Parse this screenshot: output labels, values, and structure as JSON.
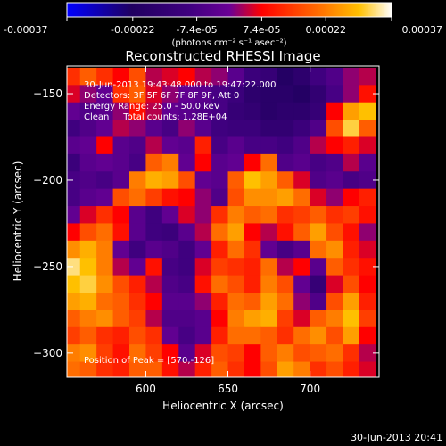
{
  "colorbar": {
    "tick_labels": [
      "-0.00037",
      "-0.00022",
      "-7.4e-05",
      "7.4e-05",
      "0.00022",
      "0.00037"
    ],
    "tick_values": [
      -0.00037,
      -0.00022,
      -7.4e-05,
      7.4e-05,
      0.00022,
      0.00037
    ],
    "range": [
      -0.00037,
      0.00037
    ],
    "unit_label": "(photons cm⁻² s⁻¹ asec⁻²)"
  },
  "overlay": {
    "time_range": "30-Jun-2013 19:43:48.000 to 19:47:22.000",
    "detectors": "Detectors: 3F 5F 6F 7F 8F 9F, Att 0",
    "energy_range": "Energy Range: 25.0 - 50.0 keV",
    "method_counts": "Clean     Total counts: 1.28E+04",
    "peak": "Position of Peak = [570,-126]"
  },
  "footer": {
    "timestamp": "30-Jun-2013 20:41"
  },
  "palette": [
    "#0000ff",
    "#200060",
    "#400080",
    "#6a0096",
    "#ff0000",
    "#ff7000",
    "#ffc000",
    "#ffffff"
  ],
  "chart_data": {
    "type": "heatmap",
    "title": "Reconstructed RHESSI Image",
    "xlabel": "Heliocentric X (arcsec)",
    "ylabel": "Heliocentric Y (arcsec)",
    "xlim": [
      552,
      742
    ],
    "ylim": [
      -314,
      -134
    ],
    "x_ticks": [
      600,
      650,
      700
    ],
    "y_ticks": [
      -300,
      -250,
      -200,
      -150
    ],
    "value_range": [
      -0.00037,
      0.00037
    ],
    "peak_position": [
      570,
      -126
    ],
    "z_columns_x": [
      555,
      565,
      575,
      585,
      595,
      605,
      615,
      625,
      635,
      645,
      655,
      665,
      675,
      685,
      695,
      705,
      715,
      725,
      735
    ],
    "z_rows_y": [
      -140,
      -150,
      -160,
      -170,
      -180,
      -190,
      -200,
      -210,
      -220,
      -230,
      -240,
      -250,
      -260,
      -270,
      -280,
      -290,
      -300,
      -310
    ],
    "z": [
      [
        0.35,
        0.5,
        0.35,
        0.2,
        0.45,
        0.1,
        0.15,
        0.2,
        0.1,
        0.05,
        -0.1,
        -0.3,
        -0.35,
        -0.55,
        -0.45,
        -0.25,
        -0.15,
        0.05,
        0.1
      ],
      [
        0.15,
        0.05,
        -0.05,
        0.35,
        0.5,
        0.15,
        0.05,
        -0.05,
        -0.1,
        -0.2,
        -0.3,
        -0.45,
        -0.5,
        -0.5,
        -0.55,
        -0.4,
        -0.2,
        0.05,
        0.25
      ],
      [
        -0.05,
        -0.15,
        -0.1,
        0.05,
        0.25,
        0.1,
        -0.05,
        -0.1,
        -0.15,
        -0.2,
        -0.35,
        -0.4,
        -0.5,
        -0.45,
        -0.45,
        -0.35,
        0.2,
        0.7,
        0.8
      ],
      [
        -0.25,
        -0.15,
        -0.05,
        0.1,
        0.05,
        -0.1,
        -0.2,
        0.05,
        -0.1,
        -0.25,
        -0.3,
        -0.3,
        -0.4,
        -0.4,
        -0.3,
        -0.15,
        0.45,
        0.85,
        0.5
      ],
      [
        -0.1,
        -0.05,
        0.2,
        -0.1,
        -0.15,
        0.1,
        -0.05,
        -0.1,
        0.3,
        -0.2,
        -0.1,
        -0.2,
        -0.2,
        -0.25,
        -0.15,
        0.1,
        0.2,
        0.3,
        0.15
      ],
      [
        -0.3,
        -0.1,
        -0.05,
        -0.1,
        -0.2,
        0.5,
        0.6,
        -0.05,
        0.2,
        -0.1,
        -0.05,
        0.2,
        0.55,
        -0.15,
        -0.1,
        -0.2,
        -0.15,
        0.1,
        -0.1
      ],
      [
        -0.2,
        -0.15,
        -0.2,
        -0.1,
        0.6,
        0.75,
        0.7,
        0.45,
        -0.05,
        -0.1,
        0.5,
        0.8,
        0.7,
        0.5,
        0.15,
        -0.15,
        -0.1,
        -0.2,
        -0.15
      ],
      [
        -0.2,
        -0.1,
        -0.05,
        0.45,
        0.55,
        0.4,
        0.25,
        0.2,
        0.05,
        -0.15,
        0.45,
        0.65,
        0.65,
        0.7,
        0.55,
        0.15,
        0.05,
        0.2,
        0.3
      ],
      [
        -0.05,
        0.15,
        0.35,
        0.2,
        -0.1,
        -0.25,
        -0.05,
        0.15,
        0.05,
        0.35,
        0.6,
        0.5,
        0.55,
        0.35,
        0.4,
        0.5,
        0.35,
        0.4,
        0.25
      ],
      [
        0.2,
        0.45,
        0.55,
        0.25,
        -0.1,
        -0.25,
        -0.3,
        -0.1,
        0.1,
        0.55,
        0.7,
        0.2,
        0.1,
        0.25,
        0.5,
        0.7,
        0.45,
        0.25,
        0.05
      ],
      [
        0.65,
        0.75,
        0.6,
        -0.05,
        -0.25,
        -0.1,
        -0.15,
        -0.25,
        -0.05,
        0.3,
        0.55,
        0.35,
        -0.05,
        -0.2,
        -0.1,
        0.55,
        0.65,
        0.3,
        0.15
      ],
      [
        0.9,
        0.8,
        0.6,
        0.1,
        -0.05,
        0.25,
        -0.2,
        -0.25,
        0.15,
        0.4,
        0.35,
        0.3,
        0.55,
        0.1,
        0.2,
        -0.1,
        0.5,
        0.35,
        0.25
      ],
      [
        0.8,
        0.85,
        0.65,
        0.45,
        0.3,
        0.1,
        -0.15,
        -0.2,
        0.25,
        0.55,
        0.45,
        0.3,
        0.6,
        0.45,
        -0.05,
        -0.35,
        0.15,
        0.45,
        0.2
      ],
      [
        0.7,
        0.75,
        0.55,
        0.5,
        0.35,
        0.2,
        -0.1,
        -0.1,
        0.05,
        0.3,
        0.55,
        0.5,
        0.7,
        0.55,
        0.05,
        -0.15,
        0.45,
        0.7,
        0.3
      ],
      [
        0.5,
        0.6,
        0.65,
        0.5,
        0.4,
        0.1,
        -0.15,
        -0.15,
        -0.1,
        0.2,
        0.6,
        0.7,
        0.75,
        0.4,
        0.15,
        0.5,
        0.6,
        0.8,
        0.4
      ],
      [
        0.4,
        0.5,
        0.35,
        0.3,
        0.45,
        0.35,
        -0.05,
        -0.2,
        -0.1,
        0.3,
        0.55,
        0.55,
        0.5,
        0.35,
        0.55,
        0.65,
        0.45,
        0.7,
        0.2
      ],
      [
        0.6,
        0.65,
        0.4,
        0.25,
        0.55,
        0.4,
        0.2,
        -0.1,
        0.15,
        0.45,
        0.4,
        0.2,
        0.5,
        0.6,
        0.45,
        0.5,
        0.55,
        0.35,
        0.1
      ],
      [
        0.55,
        0.5,
        0.35,
        0.3,
        0.5,
        0.5,
        0.25,
        0.1,
        0.3,
        0.5,
        0.35,
        0.2,
        0.45,
        0.7,
        0.6,
        0.35,
        0.45,
        0.3,
        0.15
      ]
    ]
  }
}
